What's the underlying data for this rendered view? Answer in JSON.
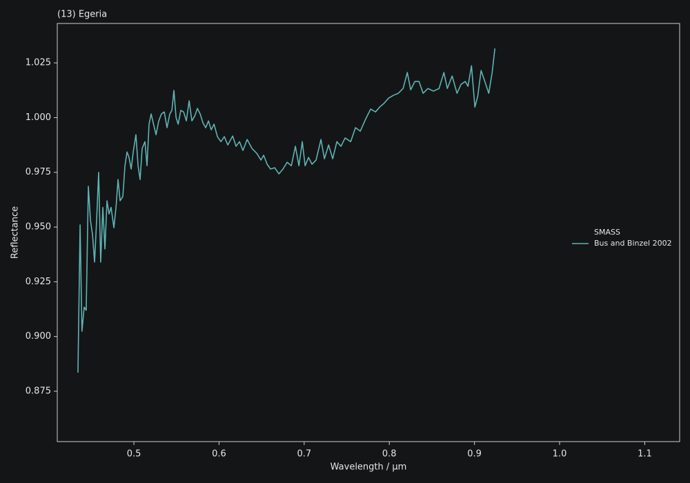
{
  "chart_data": {
    "type": "line",
    "title": "(13) Egeria",
    "xlabel": "Wavelength / µm",
    "ylabel": "Reflectance",
    "legend_title": "SMASS",
    "legend_loc": "right",
    "grid": false,
    "xlim": [
      0.41,
      1.141
    ],
    "ylim": [
      0.852,
      1.043
    ],
    "xticks": [
      0.5,
      0.6,
      0.7,
      0.8,
      0.9,
      {
        "value": 1.0,
        "label": "1.0"
      },
      1.1
    ],
    "yticks": [
      0.875,
      {
        "value": 0.9,
        "label": "0.900"
      },
      0.925,
      {
        "value": 0.95,
        "label": "0.950"
      },
      0.975,
      {
        "value": 1.0,
        "label": "1.000"
      },
      1.025
    ],
    "x": [
      0.4343,
      0.4368,
      0.439,
      0.4416,
      0.444,
      0.4465,
      0.449,
      0.4514,
      0.4538,
      0.4562,
      0.4586,
      0.461,
      0.4635,
      0.466,
      0.4684,
      0.4708,
      0.4732,
      0.4765,
      0.479,
      0.4814,
      0.4838,
      0.487,
      0.4895,
      0.4919,
      0.4943,
      0.4968,
      0.4992,
      0.5024,
      0.5049,
      0.5073,
      0.5097,
      0.513,
      0.5154,
      0.5178,
      0.5203,
      0.5227,
      0.526,
      0.5292,
      0.5324,
      0.5357,
      0.5389,
      0.5422,
      0.5446,
      0.547,
      0.5495,
      0.552,
      0.5551,
      0.5584,
      0.5616,
      0.5649,
      0.5681,
      0.5714,
      0.5746,
      0.5778,
      0.5811,
      0.5843,
      0.5876,
      0.5908,
      0.5941,
      0.5981,
      0.6022,
      0.6062,
      0.6103,
      0.616,
      0.62,
      0.624,
      0.6281,
      0.633,
      0.6387,
      0.6443,
      0.6492,
      0.6524,
      0.6565,
      0.6605,
      0.6654,
      0.6703,
      0.6751,
      0.68,
      0.6849,
      0.6897,
      0.6938,
      0.6978,
      0.7011,
      0.7051,
      0.7092,
      0.714,
      0.7197,
      0.7238,
      0.7287,
      0.7335,
      0.7384,
      0.7432,
      0.7481,
      0.7546,
      0.7603,
      0.7659,
      0.7724,
      0.7781,
      0.7838,
      0.7887,
      0.7935,
      0.7992,
      0.8049,
      0.8105,
      0.8162,
      0.8211,
      0.8251,
      0.83,
      0.8349,
      0.8397,
      0.8454,
      0.8519,
      0.8584,
      0.8641,
      0.8681,
      0.8738,
      0.8795,
      0.8843,
      0.8892,
      0.8924,
      0.8965,
      0.9005,
      0.9038,
      0.9078,
      0.9127,
      0.9168,
      0.9208,
      0.924
    ],
    "series": [
      {
        "name": "Bus and Binzel 2002",
        "color": "#5fb4b4",
        "values": [
          0.8835,
          0.951,
          0.9024,
          0.9134,
          0.912,
          0.9686,
          0.953,
          0.9465,
          0.934,
          0.953,
          0.975,
          0.934,
          0.959,
          0.94,
          0.962,
          0.956,
          0.959,
          0.9497,
          0.959,
          0.9717,
          0.962,
          0.9639,
          0.978,
          0.9843,
          0.9818,
          0.9765,
          0.9843,
          0.9922,
          0.978,
          0.9717,
          0.9859,
          0.989,
          0.978,
          0.997,
          1.0017,
          0.9976,
          0.9922,
          0.9985,
          1.0017,
          1.0026,
          0.9954,
          1.0017,
          1.0033,
          1.0124,
          1.0001,
          0.997,
          1.0033,
          1.0026,
          0.9985,
          1.0077,
          0.9985,
          1.0007,
          1.0042,
          1.0017,
          0.9976,
          0.9954,
          0.9985,
          0.9944,
          0.997,
          0.9913,
          0.989,
          0.9913,
          0.9875,
          0.9916,
          0.9869,
          0.989,
          0.985,
          0.99,
          0.9859,
          0.9837,
          0.9806,
          0.9828,
          0.9787,
          0.9765,
          0.9771,
          0.9743,
          0.9765,
          0.9796,
          0.978,
          0.9869,
          0.978,
          0.989,
          0.978,
          0.9818,
          0.9787,
          0.9806,
          0.99,
          0.9812,
          0.9875,
          0.9812,
          0.989,
          0.9869,
          0.9907,
          0.989,
          0.9954,
          0.9938,
          0.9995,
          1.0039,
          1.0026,
          1.0048,
          1.0064,
          1.0089,
          1.0102,
          1.0111,
          1.0133,
          1.0206,
          1.0127,
          1.0165,
          1.0165,
          1.0111,
          1.0133,
          1.0121,
          1.0133,
          1.0206,
          1.0133,
          1.019,
          1.0111,
          1.0152,
          1.0165,
          1.0143,
          1.0237,
          1.0048,
          1.0096,
          1.0215,
          1.0159,
          1.0111,
          1.0206,
          1.0316
        ]
      }
    ]
  }
}
